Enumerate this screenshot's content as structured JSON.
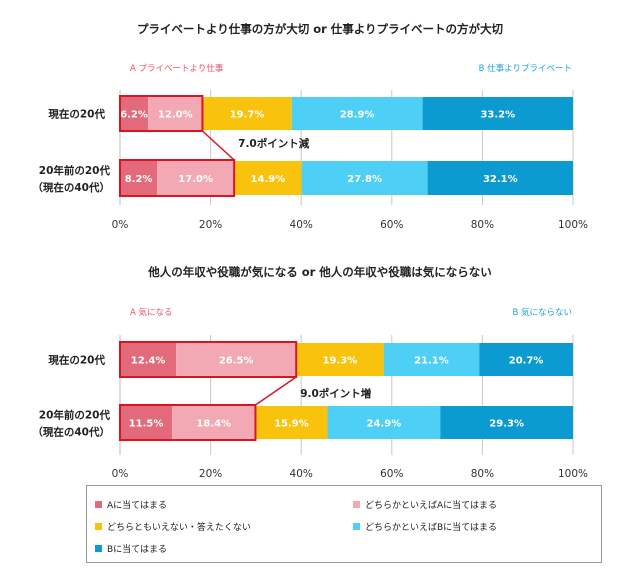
{
  "chart_data": [
    {
      "type": "bar",
      "orientation": "horizontal",
      "stacked": true,
      "title": "プライベートより仕事の方が大切 or 仕事よりプライベートの方が大切",
      "side_a_label": "A プライベートより仕事",
      "side_b_label": "B 仕事よりプライベート",
      "categories": [
        [
          "現在の20代"
        ],
        [
          "20年前の20代",
          "（現在の40代）"
        ]
      ],
      "series": [
        {
          "name": "Aに当てはまる",
          "color": "#e26a7a",
          "values": [
            6.2,
            8.2
          ],
          "labels": [
            "6.2%",
            "8.2%"
          ]
        },
        {
          "name": "どちらかといえばAに当てはまる",
          "color": "#f2a9b3",
          "values": [
            12.0,
            17.0
          ],
          "labels": [
            "12.0%",
            "17.0%"
          ]
        },
        {
          "name": "どちらともいえない・答えたくない",
          "color": "#f9c30d",
          "values": [
            19.7,
            14.9
          ],
          "labels": [
            "19.7%",
            "14.9%"
          ]
        },
        {
          "name": "どちらかといえばBに当てはまる",
          "color": "#4dcff6",
          "values": [
            28.9,
            27.8
          ],
          "labels": [
            "28.9%",
            "27.8%"
          ]
        },
        {
          "name": "Bに当てはまる",
          "color": "#0b9bd0",
          "values": [
            33.2,
            32.1
          ],
          "labels": [
            "33.2%",
            "32.1%"
          ]
        }
      ],
      "annotation": "7.0ポイント減",
      "xlim": [
        0,
        100
      ],
      "ticks": [
        "0%",
        "20%",
        "40%",
        "60%",
        "80%",
        "100%"
      ],
      "grid": true
    },
    {
      "type": "bar",
      "orientation": "horizontal",
      "stacked": true,
      "title": "他人の年収や役職が気になる or 他人の年収や役職は気にならない",
      "side_a_label": "A 気になる",
      "side_b_label": "B 気にならない",
      "categories": [
        [
          "現在の20代"
        ],
        [
          "20年前の20代",
          "（現在の40代）"
        ]
      ],
      "series": [
        {
          "name": "Aに当てはまる",
          "color": "#e26a7a",
          "values": [
            12.4,
            11.5
          ],
          "labels": [
            "12.4%",
            "11.5%"
          ]
        },
        {
          "name": "どちらかといえばAに当てはまる",
          "color": "#f2a9b3",
          "values": [
            26.5,
            18.4
          ],
          "labels": [
            "26.5%",
            "18.4%"
          ]
        },
        {
          "name": "どちらともいえない・答えたくない",
          "color": "#f9c30d",
          "values": [
            19.3,
            15.9
          ],
          "labels": [
            "19.3%",
            "15.9%"
          ]
        },
        {
          "name": "どちらかといえばBに当てはまる",
          "color": "#4dcff6",
          "values": [
            21.1,
            24.9
          ],
          "labels": [
            "21.1%",
            "24.9%"
          ]
        },
        {
          "name": "Bに当てはまる",
          "color": "#0b9bd0",
          "values": [
            20.7,
            29.3
          ],
          "labels": [
            "20.7%",
            "29.3%"
          ]
        }
      ],
      "annotation": "9.0ポイント増",
      "xlim": [
        0,
        100
      ],
      "ticks": [
        "0%",
        "20%",
        "40%",
        "60%",
        "80%",
        "100%"
      ],
      "grid": true
    }
  ],
  "legend": {
    "items": [
      {
        "name": "Aに当てはまる",
        "color": "#e26a7a"
      },
      {
        "name": "どちらかといえばAに当てはまる",
        "color": "#f2a9b3"
      },
      {
        "name": "どちらともいえない・答えたくない",
        "color": "#f9c30d"
      },
      {
        "name": "どちらかといえばBに当てはまる",
        "color": "#4dcff6"
      },
      {
        "name": "Bに当てはまる",
        "color": "#0b9bd0"
      }
    ]
  },
  "colors": {
    "side_a_text": "#e8506a",
    "side_b_text": "#1aa5dc",
    "highlight_border": "#d9161f",
    "grid": "#c8c8c8"
  }
}
